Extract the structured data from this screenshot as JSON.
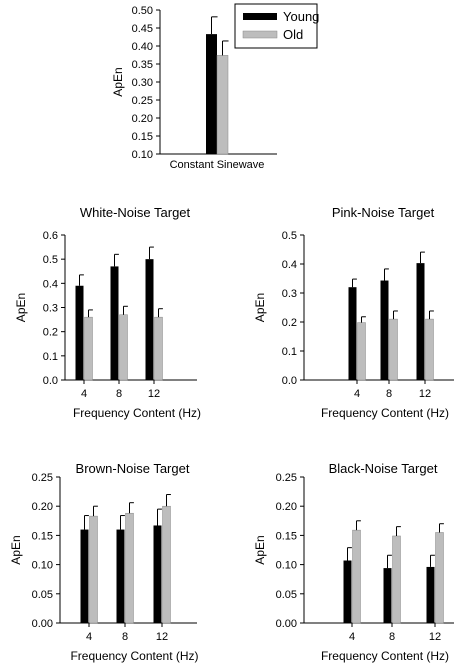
{
  "colors": {
    "young": "#000000",
    "old": "#bdbdbd",
    "axis": "#000000"
  },
  "legend": {
    "items": [
      "Young",
      "Old"
    ]
  },
  "chart_data": [
    {
      "id": "constant",
      "type": "bar",
      "title": "",
      "xlabel": "",
      "ylabel": "ApEn",
      "categories": [
        "Constant Sinewave"
      ],
      "ylim": [
        0.1,
        0.5
      ],
      "yticks": [
        "0.10",
        "0.15",
        "0.20",
        "0.25",
        "0.30",
        "0.35",
        "0.40",
        "0.45",
        "0.50"
      ],
      "legend": "top-right",
      "series": [
        {
          "name": "Young",
          "values": [
            0.433
          ],
          "errors": [
            0.048
          ]
        },
        {
          "name": "Old",
          "values": [
            0.374
          ],
          "errors": [
            0.04
          ]
        }
      ]
    },
    {
      "id": "white",
      "type": "bar",
      "title": "White-Noise Target",
      "xlabel": "Frequency Content (Hz)",
      "ylabel": "ApEn",
      "categories": [
        "4",
        "8",
        "12"
      ],
      "ylim": [
        0.0,
        0.6
      ],
      "yticks": [
        "0.0",
        "0.1",
        "0.2",
        "0.3",
        "0.4",
        "0.5",
        "0.6"
      ],
      "series": [
        {
          "name": "Young",
          "values": [
            0.39,
            0.47,
            0.5
          ],
          "errors": [
            0.045,
            0.05,
            0.05
          ]
        },
        {
          "name": "Old",
          "values": [
            0.26,
            0.27,
            0.26
          ],
          "errors": [
            0.03,
            0.035,
            0.035
          ]
        }
      ]
    },
    {
      "id": "pink",
      "type": "bar",
      "title": "Pink-Noise Target",
      "xlabel": "Frequency Content (Hz)",
      "ylabel": "ApEn",
      "categories": [
        "4",
        "8",
        "12"
      ],
      "ylim": [
        0.0,
        0.5
      ],
      "yticks": [
        "0.0",
        "0.1",
        "0.2",
        "0.3",
        "0.4",
        "0.5"
      ],
      "series": [
        {
          "name": "Young",
          "values": [
            0.32,
            0.343,
            0.403
          ],
          "errors": [
            0.028,
            0.04,
            0.038
          ]
        },
        {
          "name": "Old",
          "values": [
            0.198,
            0.21,
            0.21
          ],
          "errors": [
            0.02,
            0.028,
            0.028
          ]
        }
      ]
    },
    {
      "id": "brown",
      "type": "bar",
      "title": "Brown-Noise Target",
      "xlabel": "Frequency Content (Hz)",
      "ylabel": "ApEn",
      "categories": [
        "4",
        "8",
        "12"
      ],
      "ylim": [
        0.0,
        0.25
      ],
      "yticks": [
        "0.00",
        "0.05",
        "0.10",
        "0.15",
        "0.20",
        "0.25"
      ],
      "series": [
        {
          "name": "Young",
          "values": [
            0.16,
            0.16,
            0.167
          ],
          "errors": [
            0.024,
            0.024,
            0.028
          ]
        },
        {
          "name": "Old",
          "values": [
            0.183,
            0.188,
            0.2
          ],
          "errors": [
            0.017,
            0.018,
            0.02
          ]
        }
      ]
    },
    {
      "id": "black",
      "type": "bar",
      "title": "Black-Noise Target",
      "xlabel": "Frequency Content (Hz)",
      "ylabel": "ApEn",
      "categories": [
        "4",
        "8",
        "12"
      ],
      "ylim": [
        0.0,
        0.25
      ],
      "yticks": [
        "0.00",
        "0.05",
        "0.10",
        "0.15",
        "0.20",
        "0.25"
      ],
      "series": [
        {
          "name": "Young",
          "values": [
            0.107,
            0.094,
            0.096
          ],
          "errors": [
            0.022,
            0.022,
            0.02
          ]
        },
        {
          "name": "Old",
          "values": [
            0.159,
            0.149,
            0.155
          ],
          "errors": [
            0.016,
            0.016,
            0.015
          ]
        }
      ]
    }
  ]
}
